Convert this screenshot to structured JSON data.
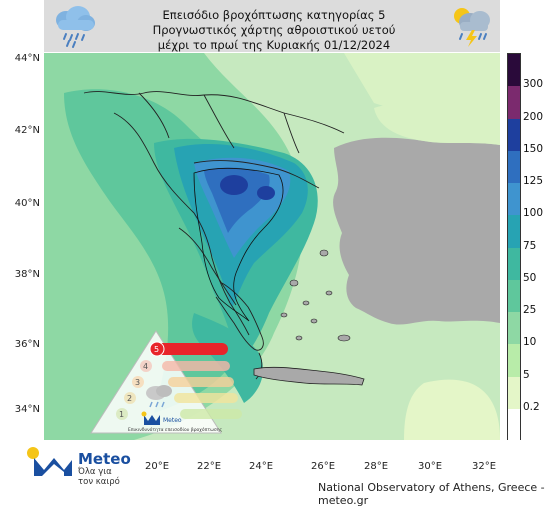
{
  "title": {
    "line1": "Επεισόδιο βροχόπτωσης κατηγορίας 5",
    "line2": "Προγνωστικός χάρτης αθροιστικού υετού",
    "line3": "μέχρι το πρωί της Κυριακής 01/12/2024"
  },
  "map": {
    "lat_labels": [
      "44°N",
      "42°N",
      "40°N",
      "38°N",
      "36°N",
      "34°N"
    ],
    "lon_labels": [
      "20°E",
      "22°E",
      "24°E",
      "26°E",
      "28°E",
      "30°E",
      "32°E"
    ],
    "land_color": "#a9a9a9",
    "sea_color": "#c6e9bf"
  },
  "colorbar": {
    "ticks": [
      "300",
      "200",
      "150",
      "125",
      "100",
      "75",
      "50",
      "25",
      "10",
      "5",
      "0.2"
    ],
    "colors": [
      "#2a0a3a",
      "#7b2a6e",
      "#1e3f9e",
      "#2f6fbf",
      "#3f94cf",
      "#27a3b3",
      "#3fb8a0",
      "#5fc79c",
      "#8ed8a4",
      "#b8eca9",
      "#e4f6c8",
      "#ffffff"
    ]
  },
  "warning": {
    "level_active": "5",
    "levels": [
      "5",
      "4",
      "3",
      "2",
      "1"
    ],
    "active_color": "#e8242a",
    "caption": "Επικινδυνότητα επεισοδίου βροχόπτωσης",
    "brand": "Meteo"
  },
  "logo": {
    "brand": "Meteo",
    "slogan_line1": "Όλα για",
    "slogan_line2": "τον καιρό"
  },
  "credit": "National Observatory of Athens, Greece - meteo.gr",
  "icons": [
    "rain-cloud-icon",
    "thunderstorm-cloud-icon",
    "meteo-logo-icon",
    "rain-cloud-warning-icon"
  ]
}
